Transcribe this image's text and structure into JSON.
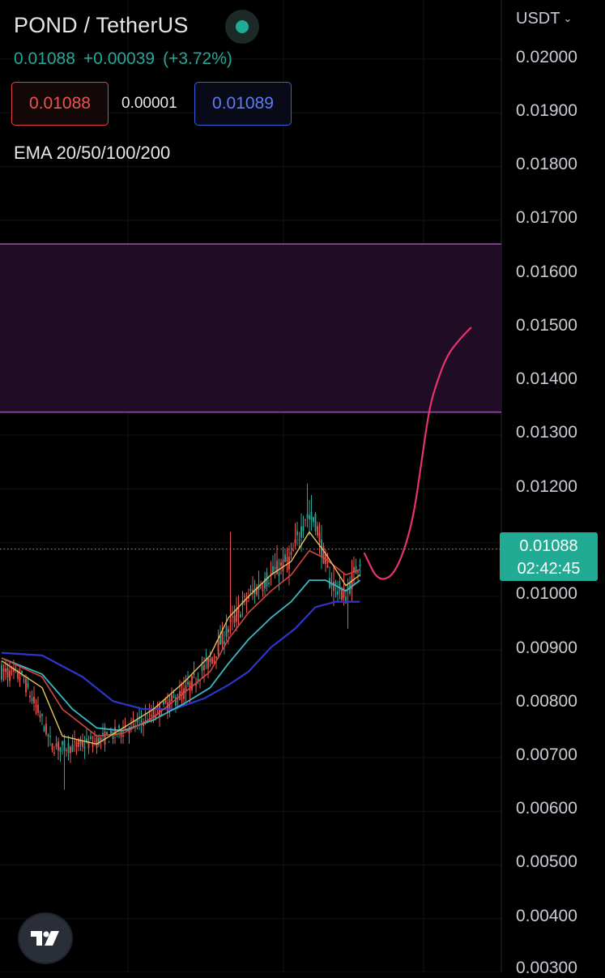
{
  "header": {
    "pair": "POND / TetherUS",
    "last_price": "0.01088",
    "change_abs": "+0.00039",
    "change_pct": "(+3.72%)",
    "sell_price": "0.01088",
    "spread": "0.00001",
    "buy_price": "0.01089",
    "indicator": "EMA 20/50/100/200",
    "status": "live"
  },
  "price_scale": {
    "currency": "USDT",
    "ticks": [
      "0.02000",
      "0.01900",
      "0.01800",
      "0.01700",
      "0.01600",
      "0.01500",
      "0.01400",
      "0.01300",
      "0.01200",
      "0.01000",
      "0.00900",
      "0.00800",
      "0.00700",
      "0.00600",
      "0.00500",
      "0.00400",
      "0.00300"
    ],
    "last_price_label": "0.01088",
    "countdown": "02:42:45"
  },
  "logo": {
    "icon": "tradingview-logo"
  },
  "colors": {
    "background": "#000000",
    "up": "#26a69a",
    "down": "#ef5350",
    "zone_fill": "#210c25",
    "zone_border": "#9c4fb5",
    "projection": "#e8336b",
    "ema20": "#e8c55a",
    "ema50": "#d6453f",
    "ema100": "#3cb8c0",
    "ema200": "#2d36c8"
  },
  "chart_data": {
    "type": "candlestick",
    "title": "POND / TetherUS",
    "ylim": [
      0.003,
      0.021
    ],
    "zone": {
      "low": 0.01343,
      "high": 0.01656
    },
    "last_price": 0.01088,
    "anchors": [
      [
        0,
        0.0086
      ],
      [
        10,
        0.0085
      ],
      [
        20,
        0.0077
      ],
      [
        25,
        0.0072
      ],
      [
        35,
        0.0072
      ],
      [
        47,
        0.0073
      ],
      [
        60,
        0.0075
      ],
      [
        75,
        0.0078
      ],
      [
        90,
        0.0082
      ],
      [
        103,
        0.0088
      ],
      [
        112,
        0.0094
      ],
      [
        122,
        0.01
      ],
      [
        133,
        0.0104
      ],
      [
        143,
        0.0107
      ],
      [
        150,
        0.0115
      ],
      [
        155,
        0.0114
      ],
      [
        162,
        0.0103
      ],
      [
        170,
        0.01
      ],
      [
        177,
        0.0107
      ]
    ],
    "spikes": [
      [
        31,
        0.0064
      ],
      [
        46,
        0.0075
      ],
      [
        60,
        0.0077
      ],
      [
        113,
        0.0112
      ],
      [
        151,
        0.0121
      ],
      [
        171,
        0.0094
      ]
    ],
    "ema20": [
      [
        0,
        0.0088
      ],
      [
        20,
        0.0083
      ],
      [
        30,
        0.0074
      ],
      [
        47,
        0.00725
      ],
      [
        60,
        0.00755
      ],
      [
        75,
        0.0079
      ],
      [
        90,
        0.0084
      ],
      [
        103,
        0.0089
      ],
      [
        112,
        0.0096
      ],
      [
        122,
        0.01
      ],
      [
        133,
        0.0104
      ],
      [
        143,
        0.01065
      ],
      [
        152,
        0.0112
      ],
      [
        160,
        0.0108
      ],
      [
        170,
        0.0102
      ],
      [
        177,
        0.0104
      ]
    ],
    "ema50": [
      [
        0,
        0.00885
      ],
      [
        20,
        0.0085
      ],
      [
        30,
        0.0079
      ],
      [
        47,
        0.0074
      ],
      [
        60,
        0.00745
      ],
      [
        75,
        0.00775
      ],
      [
        90,
        0.0082
      ],
      [
        103,
        0.0086
      ],
      [
        112,
        0.0092
      ],
      [
        122,
        0.0097
      ],
      [
        133,
        0.0101
      ],
      [
        143,
        0.0104
      ],
      [
        152,
        0.01085
      ],
      [
        160,
        0.0107
      ],
      [
        170,
        0.0104
      ],
      [
        177,
        0.0105
      ]
    ],
    "ema100": [
      [
        0,
        0.00885
      ],
      [
        20,
        0.00855
      ],
      [
        35,
        0.0079
      ],
      [
        47,
        0.00755
      ],
      [
        60,
        0.0075
      ],
      [
        75,
        0.0077
      ],
      [
        90,
        0.008
      ],
      [
        103,
        0.0083
      ],
      [
        112,
        0.00875
      ],
      [
        122,
        0.0092
      ],
      [
        133,
        0.0096
      ],
      [
        143,
        0.0099
      ],
      [
        152,
        0.0103
      ],
      [
        160,
        0.0103
      ],
      [
        170,
        0.0101
      ],
      [
        177,
        0.0103
      ]
    ],
    "ema200": [
      [
        0,
        0.00895
      ],
      [
        20,
        0.0089
      ],
      [
        40,
        0.0085
      ],
      [
        55,
        0.00805
      ],
      [
        70,
        0.0079
      ],
      [
        85,
        0.0079
      ],
      [
        100,
        0.0081
      ],
      [
        112,
        0.00835
      ],
      [
        122,
        0.0086
      ],
      [
        133,
        0.00905
      ],
      [
        145,
        0.0094
      ],
      [
        155,
        0.0098
      ],
      [
        165,
        0.0099
      ],
      [
        177,
        0.0099
      ]
    ],
    "projection": [
      [
        0,
        0.0108
      ],
      [
        2,
        0.0106
      ],
      [
        4,
        0.0104
      ],
      [
        7,
        0.0103
      ],
      [
        11,
        0.0104
      ],
      [
        15,
        0.0108
      ],
      [
        19,
        0.0115
      ],
      [
        22,
        0.0125
      ],
      [
        25,
        0.0135
      ],
      [
        28,
        0.014
      ],
      [
        32,
        0.0145
      ],
      [
        37,
        0.0148
      ],
      [
        41,
        0.015
      ]
    ]
  }
}
